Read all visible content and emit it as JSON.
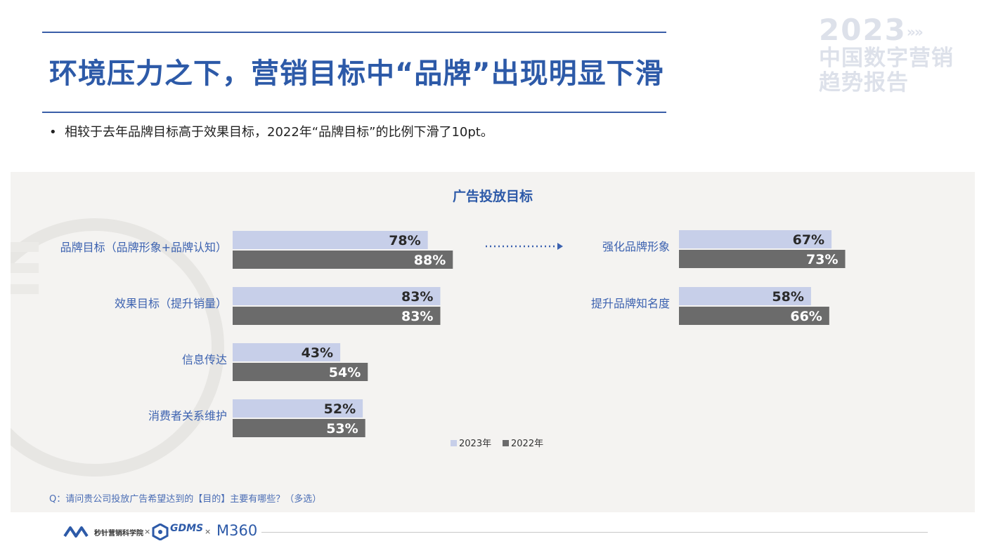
{
  "title": "环境压力之下，营销目标中“品牌”出现明显下滑",
  "bullet": {
    "marker": "•",
    "text": "相较于去年品牌目标高于效果目标，2022年“品牌目标”的比例下滑了10pt。"
  },
  "brand_watermark": {
    "year": "2023",
    "arrows": "»»",
    "line1": "中国数字营销",
    "line2": "趋势报告"
  },
  "chart_data": [
    {
      "type": "bar",
      "title": "广告投放目标",
      "orientation": "horizontal",
      "categories": [
        "品牌目标（品牌形象+品牌认知）",
        "效果目标（提升销量）",
        "信息传达",
        "消费者关系维护"
      ],
      "series": [
        {
          "name": "2023年",
          "values": [
            78,
            83,
            43,
            52
          ],
          "color": "#c7cfe9"
        },
        {
          "name": "2022年",
          "values": [
            88,
            83,
            54,
            53
          ],
          "color": "#6b6b6b"
        }
      ],
      "unit": "%",
      "xlim": [
        0,
        100
      ],
      "grid": false,
      "legend": "bottom"
    },
    {
      "type": "bar",
      "orientation": "horizontal",
      "categories": [
        "强化品牌形象",
        "提升品牌知名度"
      ],
      "series": [
        {
          "name": "2023年",
          "values": [
            67,
            58
          ],
          "color": "#c7cfe9"
        },
        {
          "name": "2022年",
          "values": [
            73,
            66
          ],
          "color": "#6b6b6b"
        }
      ],
      "unit": "%",
      "xlim": [
        0,
        100
      ],
      "grid": false
    }
  ],
  "question": "Q：请问贵公司投放广告希望达到的【目的】主要有哪些？（多选）",
  "footer": {
    "logo1": "秒针营销科学院",
    "sep": "×",
    "logo2": "GDMS",
    "logo3": "M360"
  },
  "colors": {
    "accent": "#2d5aa8",
    "bar_2023": "#c7cfe9",
    "bar_2022": "#6b6b6b",
    "panel_bg": "#f4f3f1"
  }
}
